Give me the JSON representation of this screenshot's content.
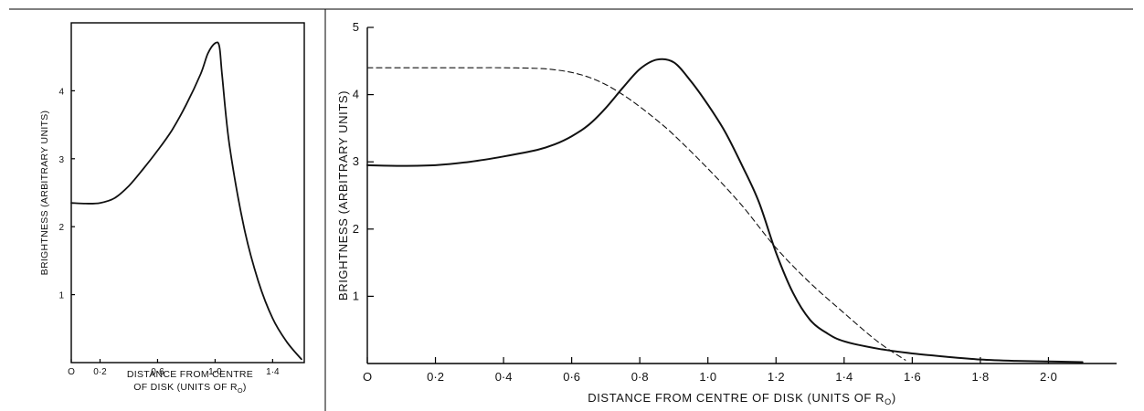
{
  "chart_data": [
    {
      "type": "line",
      "xlabel_line1": "DISTANCE FROM CENTRE",
      "xlabel_line2": "OF DISK (UNITS OF R",
      "xlabel_subscript": "O",
      "xlabel_end": ")",
      "ylabel": "BRIGHTNESS (ARBITRARY UNITS)",
      "xlim": [
        0,
        1.62
      ],
      "ylim": [
        0,
        5
      ],
      "xticks": [
        0.0,
        0.2,
        0.6,
        1.0,
        1.4
      ],
      "xtick_labels": [
        "O",
        "0·2",
        "0·6",
        "1·0",
        "1·4"
      ],
      "yticks": [
        1,
        2,
        3,
        4
      ],
      "ytick_labels": [
        "1",
        "2",
        "3",
        "4"
      ],
      "grid": false,
      "series": [
        {
          "style": "solid",
          "x": [
            0.0,
            0.1,
            0.2,
            0.3,
            0.4,
            0.5,
            0.6,
            0.7,
            0.8,
            0.9,
            0.95,
            1.0,
            1.03,
            1.05,
            1.1,
            1.2,
            1.3,
            1.4,
            1.5,
            1.6
          ],
          "y": [
            2.35,
            2.34,
            2.35,
            2.42,
            2.6,
            2.85,
            3.12,
            3.42,
            3.8,
            4.25,
            4.55,
            4.7,
            4.65,
            4.2,
            3.2,
            2.0,
            1.2,
            0.65,
            0.3,
            0.05
          ]
        }
      ]
    },
    {
      "type": "line",
      "xlabel": "DISTANCE FROM CENTRE OF DISK (UNITS OF R",
      "xlabel_subscript": "O",
      "xlabel_end": ")",
      "ylabel": "BRIGHTNESS (ARBITRARY UNITS)",
      "xlim": [
        0,
        2.2
      ],
      "ylim": [
        0,
        5
      ],
      "xticks": [
        0.0,
        0.2,
        0.4,
        0.6,
        0.8,
        1.0,
        1.2,
        1.4,
        1.6,
        1.8,
        2.0
      ],
      "xtick_labels": [
        "O",
        "0·2",
        "0·4",
        "0·6",
        "0·8",
        "1·0",
        "1·2",
        "1·4",
        "1·6",
        "1·8",
        "2·0"
      ],
      "yticks": [
        1,
        2,
        3,
        4,
        5
      ],
      "ytick_labels": [
        "1",
        "2",
        "3",
        "4",
        "5"
      ],
      "grid": false,
      "series": [
        {
          "style": "solid",
          "x": [
            0.0,
            0.1,
            0.2,
            0.3,
            0.4,
            0.5,
            0.55,
            0.6,
            0.65,
            0.7,
            0.75,
            0.8,
            0.85,
            0.9,
            0.95,
            1.0,
            1.05,
            1.1,
            1.15,
            1.2,
            1.25,
            1.3,
            1.35,
            1.4,
            1.5,
            1.6,
            1.7,
            1.8,
            1.9,
            2.0,
            2.1
          ],
          "y": [
            2.95,
            2.94,
            2.95,
            3.0,
            3.08,
            3.18,
            3.26,
            3.38,
            3.55,
            3.8,
            4.1,
            4.38,
            4.52,
            4.48,
            4.2,
            3.85,
            3.45,
            2.95,
            2.4,
            1.65,
            1.05,
            0.65,
            0.45,
            0.33,
            0.22,
            0.15,
            0.1,
            0.06,
            0.04,
            0.03,
            0.02
          ]
        },
        {
          "style": "dashed",
          "x": [
            0.0,
            0.1,
            0.2,
            0.3,
            0.4,
            0.5,
            0.55,
            0.6,
            0.65,
            0.7,
            0.75,
            0.8,
            0.85,
            0.9,
            1.0,
            1.1,
            1.2,
            1.3,
            1.4,
            1.5,
            1.58
          ],
          "y": [
            4.4,
            4.4,
            4.4,
            4.4,
            4.4,
            4.39,
            4.37,
            4.33,
            4.26,
            4.15,
            4.0,
            3.82,
            3.62,
            3.4,
            2.9,
            2.35,
            1.72,
            1.2,
            0.75,
            0.32,
            0.05
          ]
        }
      ]
    }
  ]
}
